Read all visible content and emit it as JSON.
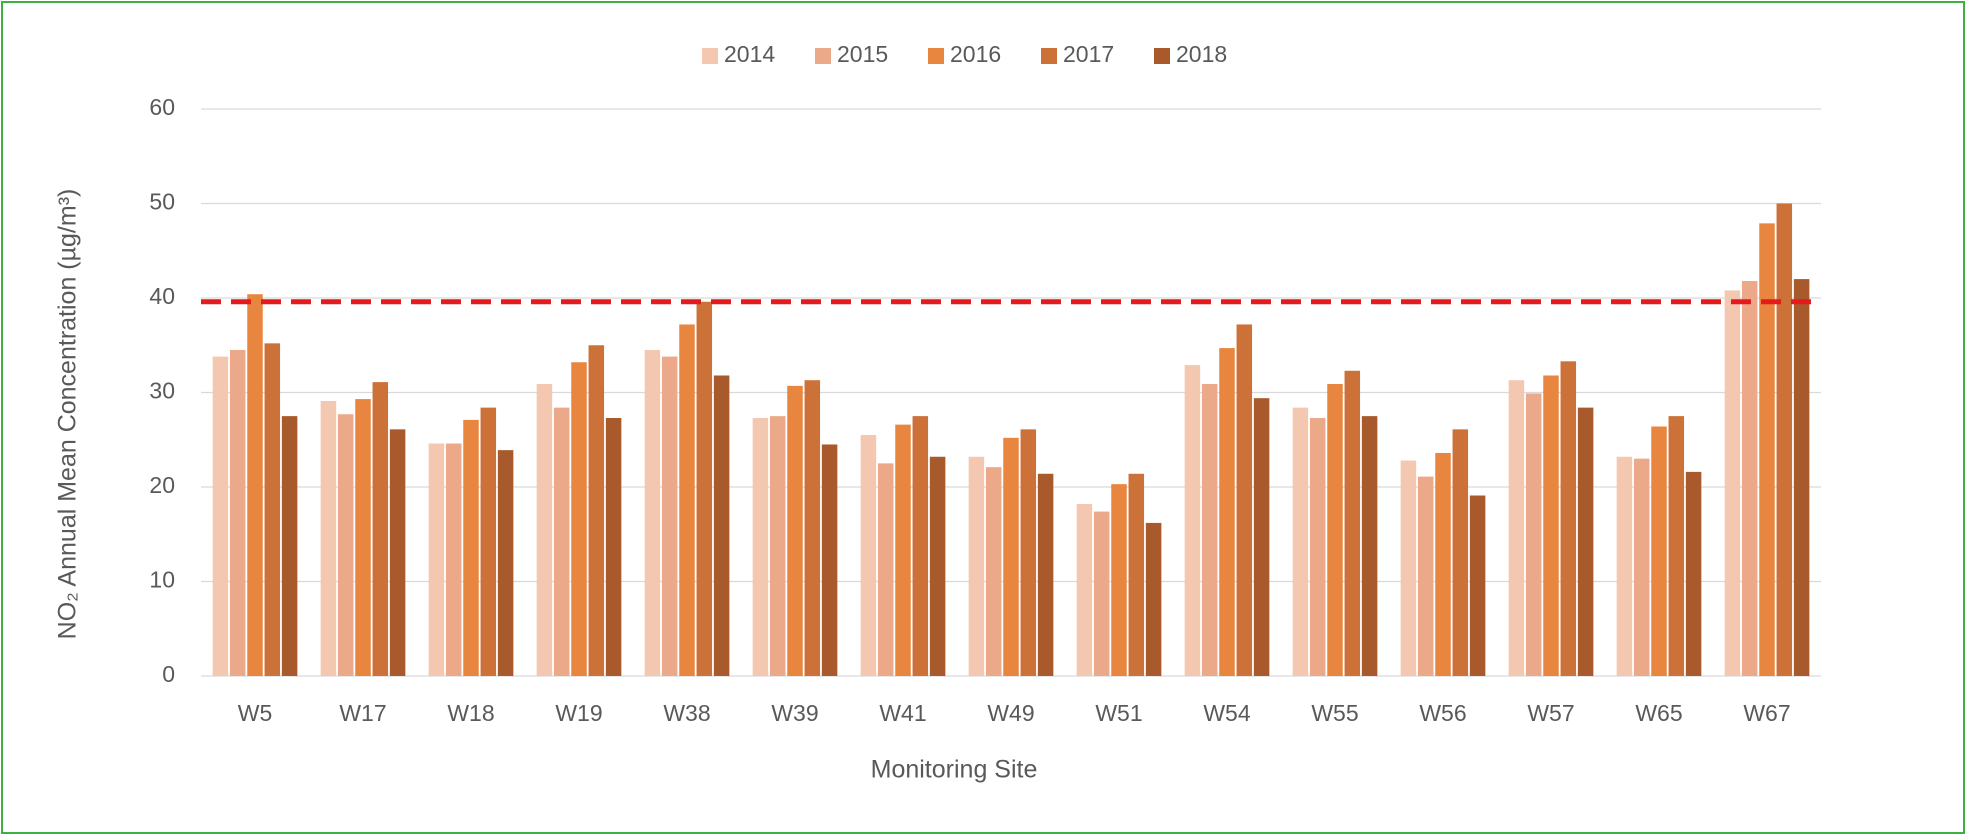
{
  "chart_data": {
    "type": "bar",
    "legend": "top",
    "x_label": "Monitoring Site",
    "y_label": "NO₂ Annual Mean Concentration (µg/m³)",
    "categories": [
      "W5",
      "W17",
      "W18",
      "W19",
      "W38",
      "W39",
      "W41",
      "W49",
      "W51",
      "W54",
      "W55",
      "W56",
      "W57",
      "W65",
      "W67"
    ],
    "series": [
      {
        "name": "2014",
        "color": "#f4c7b0",
        "values": [
          33.8,
          29.1,
          24.6,
          30.9,
          34.5,
          27.3,
          25.5,
          23.2,
          18.2,
          32.9,
          28.4,
          22.8,
          31.3,
          23.2,
          40.8
        ]
      },
      {
        "name": "2015",
        "color": "#eba98a",
        "values": [
          34.5,
          27.7,
          24.6,
          28.4,
          33.8,
          27.5,
          22.5,
          22.1,
          17.4,
          30.9,
          27.3,
          21.1,
          29.9,
          23.0,
          41.8
        ]
      },
      {
        "name": "2016",
        "color": "#e8853e",
        "values": [
          40.4,
          29.3,
          27.1,
          33.2,
          37.2,
          30.7,
          26.6,
          25.2,
          20.3,
          34.7,
          30.9,
          23.6,
          31.8,
          26.4,
          47.9
        ]
      },
      {
        "name": "2017",
        "color": "#cc7137",
        "values": [
          35.2,
          31.1,
          28.4,
          35.0,
          39.6,
          31.3,
          27.5,
          26.1,
          21.4,
          37.2,
          32.3,
          26.1,
          33.3,
          27.5,
          50.0
        ]
      },
      {
        "name": "2018",
        "color": "#a85a2c",
        "values": [
          27.5,
          26.1,
          23.9,
          27.3,
          31.8,
          24.5,
          23.2,
          21.4,
          16.2,
          29.4,
          27.5,
          19.1,
          28.4,
          21.6,
          42.0
        ]
      }
    ],
    "ylim": [
      0,
      60
    ],
    "yticks": [
      0,
      10,
      20,
      30,
      40,
      50,
      60
    ],
    "grid": true,
    "reference_line": {
      "value": 39.6,
      "color": "#e41a1c"
    }
  }
}
